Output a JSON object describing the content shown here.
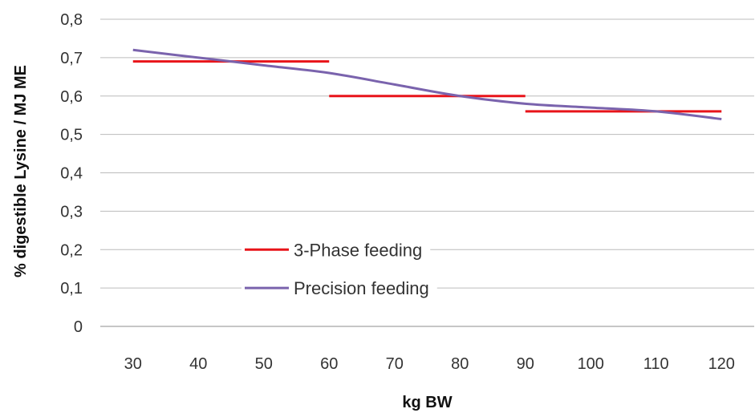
{
  "chart_data": {
    "type": "line",
    "title": "",
    "xlabel": "kg BW",
    "ylabel": "% digestible Lysine / MJ ME",
    "x_categories": [
      "30",
      "40",
      "50",
      "60",
      "70",
      "80",
      "90",
      "100",
      "110",
      "120"
    ],
    "xlim": [
      25,
      125
    ],
    "ylim": [
      0,
      0.8
    ],
    "y_ticks": [
      {
        "value": 0,
        "label": "0"
      },
      {
        "value": 0.1,
        "label": "0,1"
      },
      {
        "value": 0.2,
        "label": "0,2"
      },
      {
        "value": 0.3,
        "label": "0,3"
      },
      {
        "value": 0.4,
        "label": "0,4"
      },
      {
        "value": 0.5,
        "label": "0,5"
      },
      {
        "value": 0.6,
        "label": "0,6"
      },
      {
        "value": 0.7,
        "label": "0,7"
      },
      {
        "value": 0.8,
        "label": "0,8"
      }
    ],
    "grid": true,
    "legend_position": "center-left",
    "series": [
      {
        "name": "3-Phase feeding",
        "color": "#e8141a",
        "style": "step-segments",
        "segments": [
          {
            "x": [
              30,
              60
            ],
            "y": 0.69
          },
          {
            "x": [
              60,
              90
            ],
            "y": 0.6
          },
          {
            "x": [
              90,
              120
            ],
            "y": 0.56
          }
        ]
      },
      {
        "name": "Precision feeding",
        "color": "#7a63ad",
        "style": "smooth",
        "x": [
          30,
          40,
          50,
          60,
          70,
          80,
          90,
          100,
          110,
          120
        ],
        "y": [
          0.72,
          0.7,
          0.68,
          0.66,
          0.63,
          0.6,
          0.58,
          0.57,
          0.56,
          0.54
        ]
      }
    ]
  }
}
